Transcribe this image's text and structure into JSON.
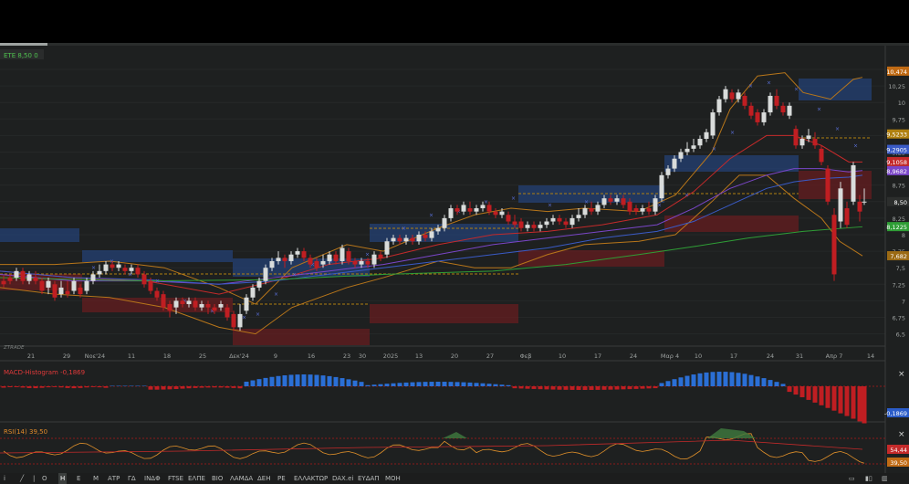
{
  "app": {
    "watermark": "ZTRADE"
  },
  "load_progress": 0.052,
  "symbol_label": {
    "symbol": "ETE",
    "price": "8,50",
    "change": "0"
  },
  "panels": {
    "macd": {
      "label": "MACD-Histogram",
      "value": "-0,1869",
      "close": "×"
    },
    "rsi": {
      "label": "RSI(14)",
      "value": "39,50",
      "close": "×"
    }
  },
  "main_close": "×",
  "price_axis_ticks": [
    "10,5",
    "10,25",
    "10",
    "9,75",
    "9,5",
    "9,25",
    "9",
    "8,75",
    "8,5",
    "8,25",
    "8",
    "7,75",
    "7,5",
    "7,25",
    "7",
    "6,75",
    "6,5"
  ],
  "price_axis_tags": [
    {
      "text": "10,474",
      "color": "#c06a14"
    },
    {
      "text": "9,5233",
      "color": "#b08010"
    },
    {
      "text": "9,2905",
      "color": "#3a5bc7"
    },
    {
      "text": "9,1058",
      "color": "#c42a2a"
    },
    {
      "text": "8,9682",
      "color": "#7a46c8"
    },
    {
      "text": "8,50",
      "color": "#2c2e2d"
    },
    {
      "text": "8,1225",
      "color": "#2f9e36"
    },
    {
      "text": "7,682",
      "color": "#9b6a14"
    }
  ],
  "macd_axis_tag": {
    "text": "-0,1869",
    "color": "#2b5cc8"
  },
  "rsi_axis_tags": [
    {
      "text": "54,44",
      "color": "#c42a2a"
    },
    {
      "text": "39,50",
      "color": "#c06a14"
    }
  ],
  "date_axis": [
    "21",
    "29",
    "Νοε'24",
    "11",
    "18",
    "25",
    "Δεκ'24",
    "9",
    "16",
    "23",
    "30",
    "2025",
    "13",
    "20",
    "27",
    "Φεβ",
    "10",
    "17",
    "24",
    "Μαρ 4",
    "10",
    "17",
    "24",
    "31",
    "Απρ 7",
    "14"
  ],
  "toolbar": {
    "items": [
      "Ο",
      "Η",
      "Ε",
      "Μ",
      "ΑΤΡ",
      "ΓΔ",
      "ΙΝΔΦ",
      "FTSE",
      "ΕΛΠΕ",
      "ΒΙΟ",
      "ΛΑΜΔΑ",
      "ΔΕΗ",
      "ΡΕ",
      "ΕΛΛΑΚΤΩΡ",
      "DAX.ei",
      "ΕΥΔΑΠ",
      "ΜΟΗ"
    ],
    "active": "Η"
  },
  "colors": {
    "up": "#d9dcdb",
    "down": "#c01e22",
    "bb": "#b8761a",
    "ma_red": "#c42a2a",
    "ma_purple": "#7a46c8",
    "ma_blue": "#3a5bc7",
    "ma_green": "#2f9e36",
    "zone_blue": "#24437a",
    "zone_red": "#6a1c1f",
    "macd_pos": "#2b6fd6",
    "macd_neg": "#c01e22"
  }
}
